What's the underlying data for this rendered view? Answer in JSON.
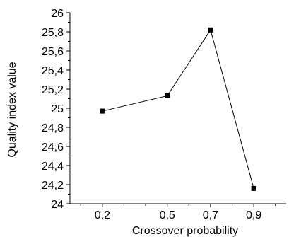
{
  "chart_data": {
    "type": "line",
    "x": [
      "0,2",
      "0,5",
      "0,7",
      "0,9"
    ],
    "x_values": [
      0.2,
      0.5,
      0.7,
      0.9
    ],
    "y": [
      24.97,
      25.13,
      25.82,
      24.16
    ],
    "xlabel": "Crossover probability",
    "ylabel": "Quality index value",
    "xlim": [
      0.05,
      1.05
    ],
    "ylim": [
      24,
      26
    ],
    "yticks": [
      24,
      24.2,
      24.4,
      24.6,
      24.8,
      25,
      25.2,
      25.4,
      25.6,
      25.8,
      26
    ],
    "ytick_labels": [
      "24",
      "24,2",
      "24,4",
      "24,6",
      "24,8",
      "25",
      "25,2",
      "25,4",
      "25,6",
      "25,8",
      "26"
    ],
    "grid": false,
    "marker": "square",
    "line_color": "#000000",
    "marker_color": "#000000"
  }
}
